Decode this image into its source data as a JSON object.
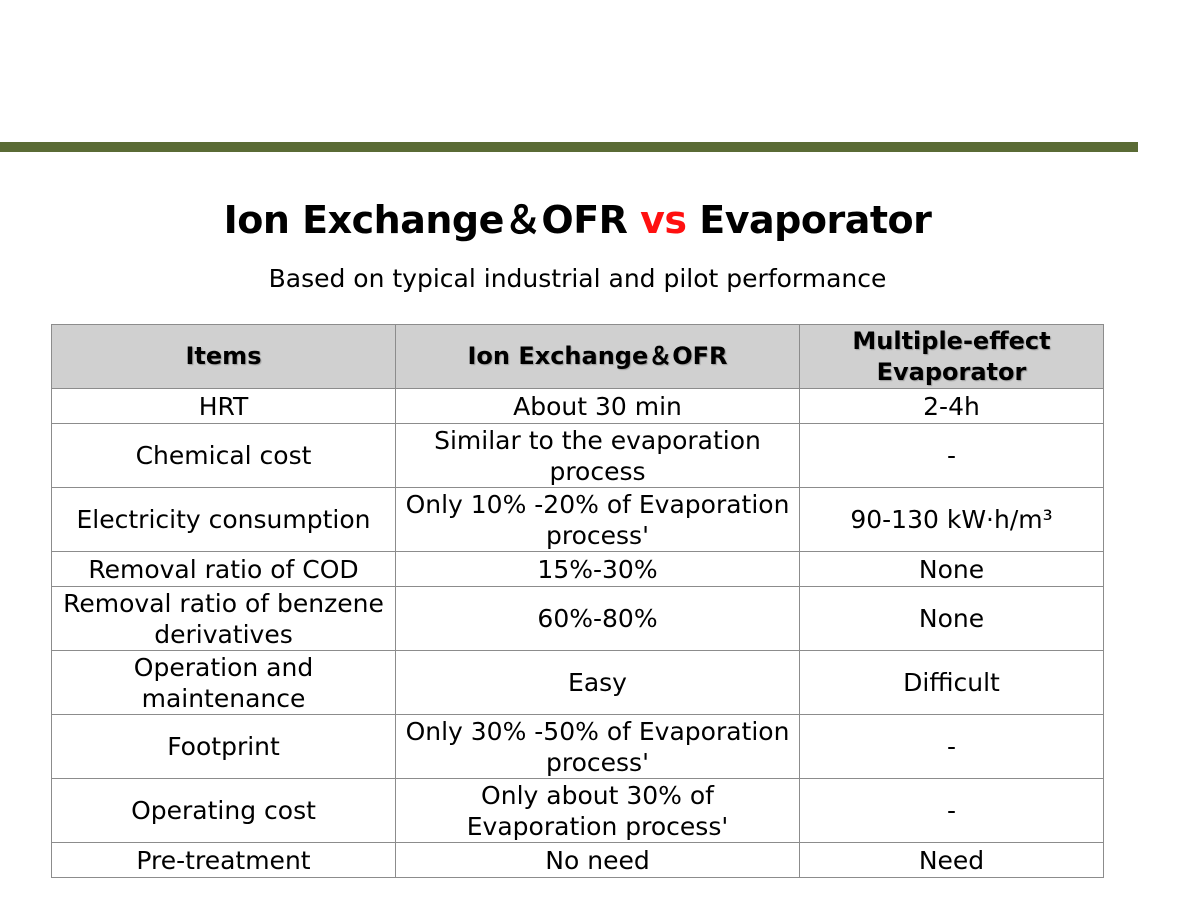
{
  "slide": {
    "title_part1": "Ion Exchange＆OFR",
    "title_vs": "vs",
    "title_part2": "Evaporator",
    "subtitle": "Based on typical industrial and pilot performance",
    "accent_color": "#5a6b35",
    "vs_color": "#ff1010"
  },
  "table": {
    "headers": [
      "Items",
      "Ion Exchange＆OFR",
      "Multiple-effect Evaporator"
    ],
    "rows": [
      {
        "item": "HRT",
        "ion": "About 30 min",
        "evap": "2-4h"
      },
      {
        "item": "Chemical cost",
        "ion": "Similar to the evaporation process",
        "evap": "-"
      },
      {
        "item": "Electricity consumption",
        "ion": "Only 10% -20% of Evaporation process'",
        "evap": "90-130 kW·h/m³"
      },
      {
        "item": "Removal ratio of COD",
        "ion": "15%-30%",
        "evap": "None"
      },
      {
        "item": "Removal ratio of benzene derivatives",
        "ion": "60%-80%",
        "evap": "None"
      },
      {
        "item": "Operation and maintenance",
        "ion": "Easy",
        "evap": "Difficult"
      },
      {
        "item": "Footprint",
        "ion": "Only 30% -50% of Evaporation process'",
        "evap": "-"
      },
      {
        "item": "Operating cost",
        "ion": "Only about 30% of Evaporation process'",
        "evap": "-"
      },
      {
        "item": "Pre-treatment",
        "ion": "No need",
        "evap": "Need"
      }
    ]
  }
}
